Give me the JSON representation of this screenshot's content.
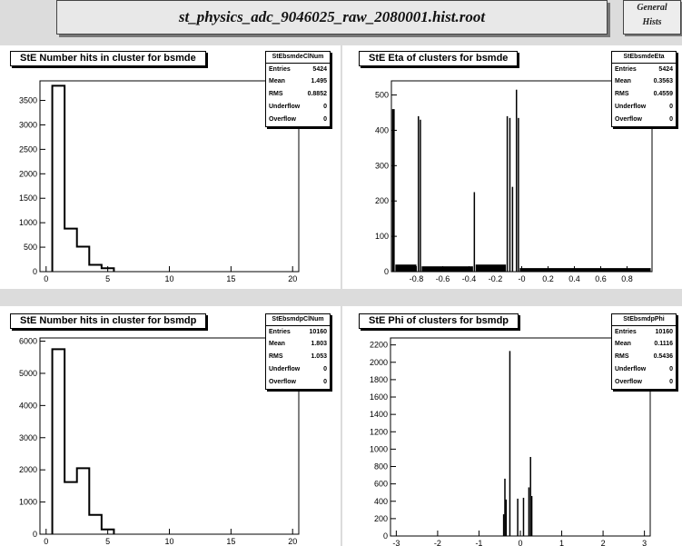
{
  "header": {
    "file_title": "st_physics_adc_9046025_raw_2080001.hist.root",
    "corner_line1": "General",
    "corner_line2": "Hists"
  },
  "stat_labels": {
    "entries": "Entries",
    "mean": "Mean",
    "rms": "RMS",
    "underflow": "Underflow",
    "overflow": "Overflow"
  },
  "panels": [
    {
      "title": "StE Number hits in cluster for bsmde",
      "stats": {
        "name": "StEbsmdeClNum",
        "entries": "5424",
        "mean": "1.495",
        "rms": "0.8852",
        "underflow": "0",
        "overflow": "0"
      }
    },
    {
      "title": "StE Eta of clusters for bsmde",
      "stats": {
        "name": "StEbsmdeEta",
        "entries": "5424",
        "mean": "0.3563",
        "rms": "0.4559",
        "underflow": "0",
        "overflow": "0"
      }
    },
    {
      "title": "StE Number hits in cluster for bsmdp",
      "stats": {
        "name": "StEbsmdpClNum",
        "entries": "10160",
        "mean": "1.803",
        "rms": "1.053",
        "underflow": "0",
        "overflow": "0"
      }
    },
    {
      "title": "StE Phi of clusters for bsmdp",
      "stats": {
        "name": "StEbsmdpPhi",
        "entries": "10160",
        "mean": "0.1116",
        "rms": "0.5436",
        "underflow": "0",
        "overflow": "0"
      }
    }
  ],
  "chart_data": [
    {
      "type": "bar",
      "title": "StE Number hits in cluster for bsmde",
      "style": "step",
      "xlim": [
        -0.5,
        20.5
      ],
      "ylim": [
        0,
        3900
      ],
      "xticks": [
        0,
        5,
        10,
        15,
        20
      ],
      "yticks": [
        0,
        500,
        1000,
        1500,
        2000,
        2500,
        3000,
        3500
      ],
      "bins": [
        {
          "x0": 0.5,
          "x1": 1.5,
          "y": 3800
        },
        {
          "x0": 1.5,
          "x1": 2.5,
          "y": 880
        },
        {
          "x0": 2.5,
          "x1": 3.5,
          "y": 510
        },
        {
          "x0": 3.5,
          "x1": 4.5,
          "y": 140
        },
        {
          "x0": 4.5,
          "x1": 5.5,
          "y": 70
        }
      ]
    },
    {
      "type": "bar",
      "title": "StE Eta of clusters for bsmde",
      "style": "filled",
      "xlim": [
        -0.99,
        0.99
      ],
      "ylim": [
        0,
        540
      ],
      "xticks": [
        -0.8,
        -0.6,
        -0.4,
        -0.2,
        0,
        0.2,
        0.4,
        0.6,
        0.8
      ],
      "xtick_labels": [
        "-0.8",
        "-0.6",
        "-0.4",
        "-0.2",
        "-0",
        "0.2",
        "0.4",
        "0.6",
        "0.8"
      ],
      "yticks": [
        0,
        100,
        200,
        300,
        400,
        500
      ],
      "bins": [
        {
          "x0": -0.985,
          "x1": -0.965,
          "y": 460
        },
        {
          "x0": -0.96,
          "x1": -0.8,
          "y": 20
        },
        {
          "x0": -0.79,
          "x1": -0.78,
          "y": 440
        },
        {
          "x0": -0.775,
          "x1": -0.765,
          "y": 430
        },
        {
          "x0": -0.76,
          "x1": -0.37,
          "y": 15
        },
        {
          "x0": -0.365,
          "x1": -0.355,
          "y": 225
        },
        {
          "x0": -0.35,
          "x1": -0.12,
          "y": 20
        },
        {
          "x0": -0.115,
          "x1": -0.105,
          "y": 440
        },
        {
          "x0": -0.095,
          "x1": -0.085,
          "y": 435
        },
        {
          "x0": -0.075,
          "x1": -0.065,
          "y": 240
        },
        {
          "x0": -0.045,
          "x1": -0.035,
          "y": 515
        },
        {
          "x0": -0.03,
          "x1": -0.02,
          "y": 435
        },
        {
          "x0": -0.015,
          "x1": 0.98,
          "y": 10
        }
      ]
    },
    {
      "type": "bar",
      "title": "StE Number hits in cluster for bsmdp",
      "style": "step",
      "xlim": [
        -0.5,
        20.5
      ],
      "ylim": [
        0,
        6100
      ],
      "xticks": [
        0,
        5,
        10,
        15,
        20
      ],
      "yticks": [
        0,
        1000,
        2000,
        3000,
        4000,
        5000,
        6000
      ],
      "bins": [
        {
          "x0": 0.5,
          "x1": 1.5,
          "y": 5750
        },
        {
          "x0": 1.5,
          "x1": 2.5,
          "y": 1620
        },
        {
          "x0": 2.5,
          "x1": 3.5,
          "y": 2050
        },
        {
          "x0": 3.5,
          "x1": 4.5,
          "y": 600
        },
        {
          "x0": 4.5,
          "x1": 5.5,
          "y": 150
        }
      ]
    },
    {
      "type": "bar",
      "title": "StE Phi of clusters for bsmdp",
      "style": "filled",
      "xlim": [
        -3.14,
        3.14
      ],
      "ylim": [
        0,
        2280
      ],
      "xticks": [
        -3,
        -2,
        -1,
        0,
        1,
        2,
        3
      ],
      "yticks": [
        0,
        200,
        400,
        600,
        800,
        1000,
        1200,
        1400,
        1600,
        1800,
        2000,
        2200
      ],
      "bins": [
        {
          "x0": -0.42,
          "x1": -0.4,
          "y": 250
        },
        {
          "x0": -0.39,
          "x1": -0.37,
          "y": 660
        },
        {
          "x0": -0.36,
          "x1": -0.34,
          "y": 420
        },
        {
          "x0": -0.27,
          "x1": -0.25,
          "y": 2130
        },
        {
          "x0": -0.08,
          "x1": -0.06,
          "y": 430
        },
        {
          "x0": 0.06,
          "x1": 0.08,
          "y": 440
        },
        {
          "x0": 0.19,
          "x1": 0.21,
          "y": 560
        },
        {
          "x0": 0.23,
          "x1": 0.25,
          "y": 910
        },
        {
          "x0": 0.26,
          "x1": 0.28,
          "y": 460
        }
      ]
    }
  ]
}
